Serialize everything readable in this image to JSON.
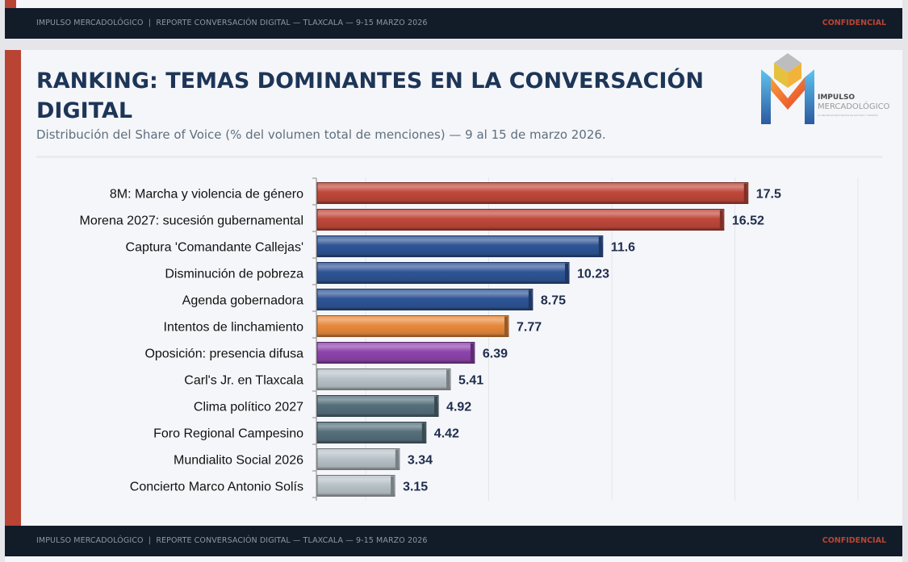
{
  "header": {
    "footer_text": "IMPULSO MERCADOLÓGICO  |  REPORTE CONVERSACIÓN DIGITAL — TLAXCALA — 9-15 MARZO 2026",
    "confidential": "CONFIDENCIAL"
  },
  "slide": {
    "title": "RANKING: TEMAS DOMINANTES EN LA CONVERSACIÓN DIGITAL",
    "subtitle": "Distribución del Share of Voice (% del volumen total de menciones) — 9 al 15 de marzo 2026.",
    "logo": {
      "line1": "IMPULSO",
      "line2": "MERCADOLÓGICO",
      "tagline": "LO MEJOR EN ENCUESTAS DE ESTUDIO Y OPINIÓN"
    }
  },
  "footer": {
    "text": "IMPULSO MERCADOLÓGICO  |  REPORTE CONVERSACIÓN DIGITAL — TLAXCALA — 9-15 MARZO 2026",
    "confidential": "CONFIDENCIAL"
  },
  "colors": {
    "accent": "#b94434",
    "navy": "#121c29",
    "title": "#1d3557"
  },
  "chart_data": {
    "type": "bar",
    "orientation": "horizontal",
    "title": "",
    "xlabel": "",
    "ylabel": "",
    "xlim": [
      0,
      23
    ],
    "grid": true,
    "legend": "none",
    "categories": [
      "8M: Marcha y violencia de género",
      "Morena 2027: sucesión gubernamental",
      "Captura 'Comandante Callejas'",
      "Disminución de pobreza",
      "Agenda gobernadora",
      "Intentos de linchamiento",
      "Oposición: presencia difusa",
      "Carl's Jr. en Tlaxcala",
      "Clima político 2027",
      "Foro Regional Campesino",
      "Mundialito Social 2026",
      "Concierto Marco Antonio Solís"
    ],
    "values": [
      17.5,
      16.52,
      11.6,
      10.23,
      8.75,
      7.77,
      6.39,
      5.41,
      4.92,
      4.42,
      3.34,
      3.15
    ],
    "value_labels": [
      "17.5",
      "16.52",
      "11.6",
      "10.23",
      "8.75",
      "7.77",
      "6.39",
      "5.41",
      "4.92",
      "4.42",
      "3.34",
      "3.15"
    ],
    "bar_colors": [
      "#c0483a",
      "#c0483a",
      "#2f5597",
      "#2f5597",
      "#2f5597",
      "#e88a3c",
      "#8e44ad",
      "#b8c3c9",
      "#56707c",
      "#56707c",
      "#b8c3c9",
      "#b8c3c9"
    ]
  }
}
